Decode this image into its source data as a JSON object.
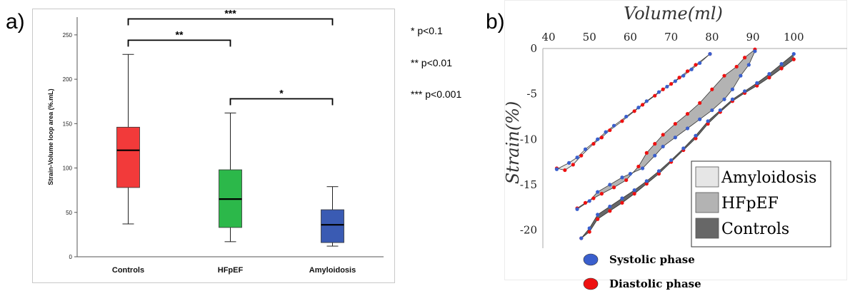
{
  "panels": {
    "a_label": "a)",
    "b_label": "b)"
  },
  "significance_notes": [
    "* p<0.1",
    "** p<0.01",
    "*** p<0.001"
  ],
  "chart_data": [
    {
      "type": "boxplot",
      "ylabel": "Strain-Volume loop area (%.mL)",
      "ylim": [
        0,
        270
      ],
      "yticks": [
        0,
        50,
        100,
        150,
        200,
        250
      ],
      "grid": false,
      "categories": [
        "Controls",
        "HFpEF",
        "Amyloidosis"
      ],
      "boxes": [
        {
          "name": "Controls",
          "whisker_low": 37,
          "q1": 78,
          "median": 120,
          "q3": 146,
          "whisker_high": 228,
          "color": "#f23a3a"
        },
        {
          "name": "HFpEF",
          "whisker_low": 17,
          "q1": 33,
          "median": 65,
          "q3": 98,
          "whisker_high": 162,
          "color": "#2cb84a"
        },
        {
          "name": "Amyloidosis",
          "whisker_low": 12,
          "q1": 16,
          "median": 36,
          "q3": 53,
          "whisker_high": 79,
          "color": "#3a5bb3"
        }
      ],
      "brackets": [
        {
          "from": "Controls",
          "to": "Amyloidosis",
          "label": "***",
          "level": 268
        },
        {
          "from": "Controls",
          "to": "HFpEF",
          "label": "**",
          "level": 244
        },
        {
          "from": "HFpEF",
          "to": "Amyloidosis",
          "label": "*",
          "level": 178
        }
      ]
    },
    {
      "type": "line",
      "xlabel": "Volume(ml)",
      "ylabel": "Strain(%)",
      "xlim": [
        40,
        101
      ],
      "ylim": [
        -22,
        0
      ],
      "xticks": [
        40,
        50,
        60,
        70,
        80,
        90,
        100
      ],
      "yticks": [
        0,
        -5,
        -10,
        -15,
        -20
      ],
      "x_axis_position": "top",
      "grid": false,
      "legend_position": "bottom-right",
      "legend": [
        {
          "label": "Amyloidosis",
          "color": "#e6e6e6"
        },
        {
          "label": "HFpEF",
          "color": "#b3b3b3"
        },
        {
          "label": "Controls",
          "color": "#676767"
        }
      ],
      "phase_legend": [
        {
          "label": "Systolic phase",
          "color": "#3a5fcd"
        },
        {
          "label": "Diastolic phase",
          "color": "#ee1111"
        }
      ],
      "series": [
        {
          "name": "Amyloidosis",
          "fill": "#e6e6e6",
          "systolic": {
            "x": [
              42,
              45,
              47,
              49,
              52,
              54,
              56,
              59,
              62,
              64,
              67,
              69,
              71,
              73,
              75,
              77,
              79.5
            ],
            "y": [
              -13.3,
              -12.6,
              -12.0,
              -11.1,
              -10.0,
              -9.2,
              -8.5,
              -7.5,
              -6.5,
              -5.8,
              -4.8,
              -4.2,
              -3.6,
              -3.0,
              -2.3,
              -1.6,
              -0.6
            ]
          },
          "diastolic": {
            "x": [
              42,
              44,
              46,
              48,
              51,
              53,
              55,
              58,
              61,
              63,
              66,
              68,
              70,
              72,
              74,
              76,
              79.5
            ],
            "y": [
              -13.2,
              -13.4,
              -12.8,
              -11.8,
              -10.5,
              -9.8,
              -9.0,
              -8.0,
              -6.9,
              -6.2,
              -5.2,
              -4.5,
              -3.9,
              -3.2,
              -2.5,
              -1.8,
              -0.6
            ]
          }
        },
        {
          "name": "HFpEF",
          "fill": "#b3b3b3",
          "systolic": {
            "x": [
              47,
              50,
              52,
              55,
              58,
              60,
              63,
              66,
              68,
              71,
              74,
              77,
              80,
              83,
              85,
              87,
              89,
              90.5
            ],
            "y": [
              -17.7,
              -16.8,
              -15.8,
              -15.0,
              -14.2,
              -13.8,
              -13.2,
              -11.8,
              -10.8,
              -9.8,
              -8.8,
              -7.8,
              -6.8,
              -5.6,
              -4.5,
              -3.0,
              -1.8,
              -0.3
            ]
          },
          "diastolic": {
            "x": [
              47,
              49,
              51,
              53,
              56,
              59,
              62,
              64,
              66,
              68,
              71,
              74,
              77,
              80,
              83,
              86,
              88,
              90.5
            ],
            "y": [
              -17.6,
              -17.0,
              -16.5,
              -16.0,
              -15.3,
              -14.5,
              -13.0,
              -11.5,
              -10.5,
              -9.5,
              -8.3,
              -7.2,
              -6.0,
              -4.5,
              -3.0,
              -2.0,
              -1.0,
              -0.1
            ]
          }
        },
        {
          "name": "Controls",
          "fill": "#676767",
          "systolic": {
            "x": [
              48,
              50,
              52,
              55,
              58,
              61,
              64,
              67,
              70,
              73,
              76,
              79,
              82,
              85,
              88,
              91,
              94,
              97,
              100
            ],
            "y": [
              -20.9,
              -19.8,
              -18.3,
              -17.4,
              -16.5,
              -15.6,
              -14.6,
              -13.5,
              -12.3,
              -11.0,
              -9.6,
              -8.0,
              -6.8,
              -5.6,
              -4.7,
              -3.8,
              -2.8,
              -1.7,
              -0.6
            ]
          },
          "diastolic": {
            "x": [
              48,
              50,
              52,
              55,
              58,
              61,
              64,
              67,
              70,
              73,
              76,
              79,
              82,
              85,
              88,
              91,
              94,
              97,
              100
            ],
            "y": [
              -20.9,
              -20.2,
              -18.8,
              -17.9,
              -17.0,
              -16.0,
              -14.9,
              -13.8,
              -12.5,
              -11.2,
              -9.9,
              -8.3,
              -7.0,
              -5.8,
              -4.9,
              -4.1,
              -3.2,
              -2.2,
              -1.2
            ]
          }
        }
      ]
    }
  ]
}
